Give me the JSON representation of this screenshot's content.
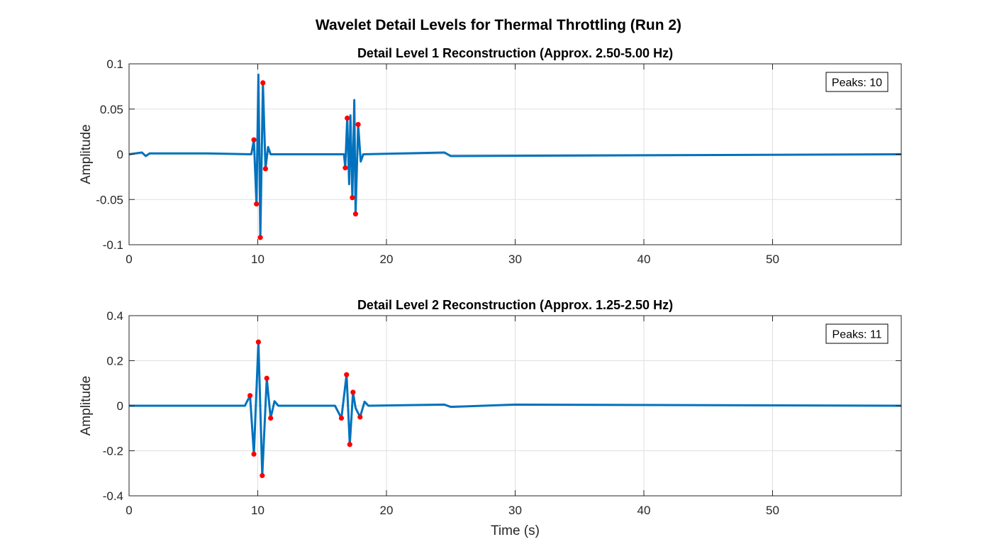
{
  "figure": {
    "title": "Wavelet Detail Levels for Thermal Throttling (Run 2)"
  },
  "chart_data": [
    {
      "type": "line",
      "title": "Detail Level 1 Reconstruction (Approx. 2.50-5.00 Hz)",
      "xlabel": "",
      "ylabel": "Amplitude",
      "xlim": [
        0,
        60
      ],
      "ylim": [
        -0.1,
        0.1
      ],
      "xticks": [
        0,
        10,
        20,
        30,
        40,
        50
      ],
      "xtick_labels": [
        "0",
        "10",
        "20",
        "30",
        "40",
        "50"
      ],
      "yticks": [
        -0.1,
        -0.05,
        0,
        0.05,
        0.1
      ],
      "ytick_labels": [
        "-0.1",
        "-0.05",
        "0",
        "0.05",
        "0.1"
      ],
      "grid": true,
      "line_color": "#0072BD",
      "marker_color": "#FF0000",
      "annotation": "Peaks: 10",
      "series": [
        {
          "values": [
            [
              0,
              0
            ],
            [
              1.0,
              0.002
            ],
            [
              1.3,
              -0.002
            ],
            [
              1.6,
              0.001
            ],
            [
              6,
              0.001
            ],
            [
              9.5,
              0
            ],
            [
              9.7,
              0.016
            ],
            [
              9.9,
              -0.055
            ],
            [
              10.05,
              0.088
            ],
            [
              10.2,
              -0.092
            ],
            [
              10.4,
              0.079
            ],
            [
              10.6,
              -0.016
            ],
            [
              10.8,
              0.008
            ],
            [
              11.0,
              0
            ],
            [
              16.7,
              0
            ],
            [
              16.8,
              -0.015
            ],
            [
              16.95,
              0.04
            ],
            [
              17.1,
              -0.033
            ],
            [
              17.2,
              0.043
            ],
            [
              17.35,
              -0.048
            ],
            [
              17.5,
              0.06
            ],
            [
              17.6,
              -0.066
            ],
            [
              17.8,
              0.033
            ],
            [
              18.0,
              -0.008
            ],
            [
              18.2,
              0
            ],
            [
              24.5,
              0.002
            ],
            [
              25,
              -0.002
            ],
            [
              60,
              0
            ]
          ]
        }
      ],
      "peaks": [
        [
          9.7,
          0.016
        ],
        [
          9.9,
          -0.055
        ],
        [
          10.2,
          -0.092
        ],
        [
          10.4,
          0.079
        ],
        [
          10.6,
          -0.016
        ],
        [
          16.8,
          -0.015
        ],
        [
          16.95,
          0.04
        ],
        [
          17.35,
          -0.048
        ],
        [
          17.6,
          -0.066
        ],
        [
          17.8,
          0.033
        ]
      ]
    },
    {
      "type": "line",
      "title": "Detail Level 2 Reconstruction (Approx. 1.25-2.50 Hz)",
      "xlabel": "Time (s)",
      "ylabel": "Amplitude",
      "xlim": [
        0,
        60
      ],
      "ylim": [
        -0.4,
        0.4
      ],
      "xticks": [
        0,
        10,
        20,
        30,
        40,
        50
      ],
      "xtick_labels": [
        "0",
        "10",
        "20",
        "30",
        "40",
        "50"
      ],
      "yticks": [
        -0.4,
        -0.2,
        0,
        0.2,
        0.4
      ],
      "ytick_labels": [
        "-0.4",
        "-0.2",
        "0",
        "0.2",
        "0.4"
      ],
      "grid": true,
      "line_color": "#0072BD",
      "marker_color": "#FF0000",
      "annotation": "Peaks: 11",
      "series": [
        {
          "values": [
            [
              0,
              0
            ],
            [
              9.0,
              0
            ],
            [
              9.4,
              0.045
            ],
            [
              9.7,
              -0.215
            ],
            [
              10.05,
              0.283
            ],
            [
              10.35,
              -0.31
            ],
            [
              10.7,
              0.122
            ],
            [
              11.0,
              -0.055
            ],
            [
              11.3,
              0.02
            ],
            [
              11.6,
              0
            ],
            [
              16.0,
              0
            ],
            [
              16.5,
              -0.055
            ],
            [
              16.9,
              0.138
            ],
            [
              17.15,
              -0.172
            ],
            [
              17.4,
              0.06
            ],
            [
              17.6,
              -0.01
            ],
            [
              17.95,
              -0.05
            ],
            [
              18.3,
              0.018
            ],
            [
              18.6,
              0
            ],
            [
              24.5,
              0.005
            ],
            [
              25,
              -0.005
            ],
            [
              30,
              0.005
            ],
            [
              60,
              0
            ]
          ]
        }
      ],
      "peaks": [
        [
          9.4,
          0.045
        ],
        [
          9.7,
          -0.215
        ],
        [
          10.05,
          0.283
        ],
        [
          10.35,
          -0.31
        ],
        [
          10.7,
          0.122
        ],
        [
          11.0,
          -0.055
        ],
        [
          16.5,
          -0.055
        ],
        [
          16.9,
          0.138
        ],
        [
          17.15,
          -0.172
        ],
        [
          17.4,
          0.06
        ],
        [
          17.95,
          -0.05
        ]
      ]
    }
  ]
}
